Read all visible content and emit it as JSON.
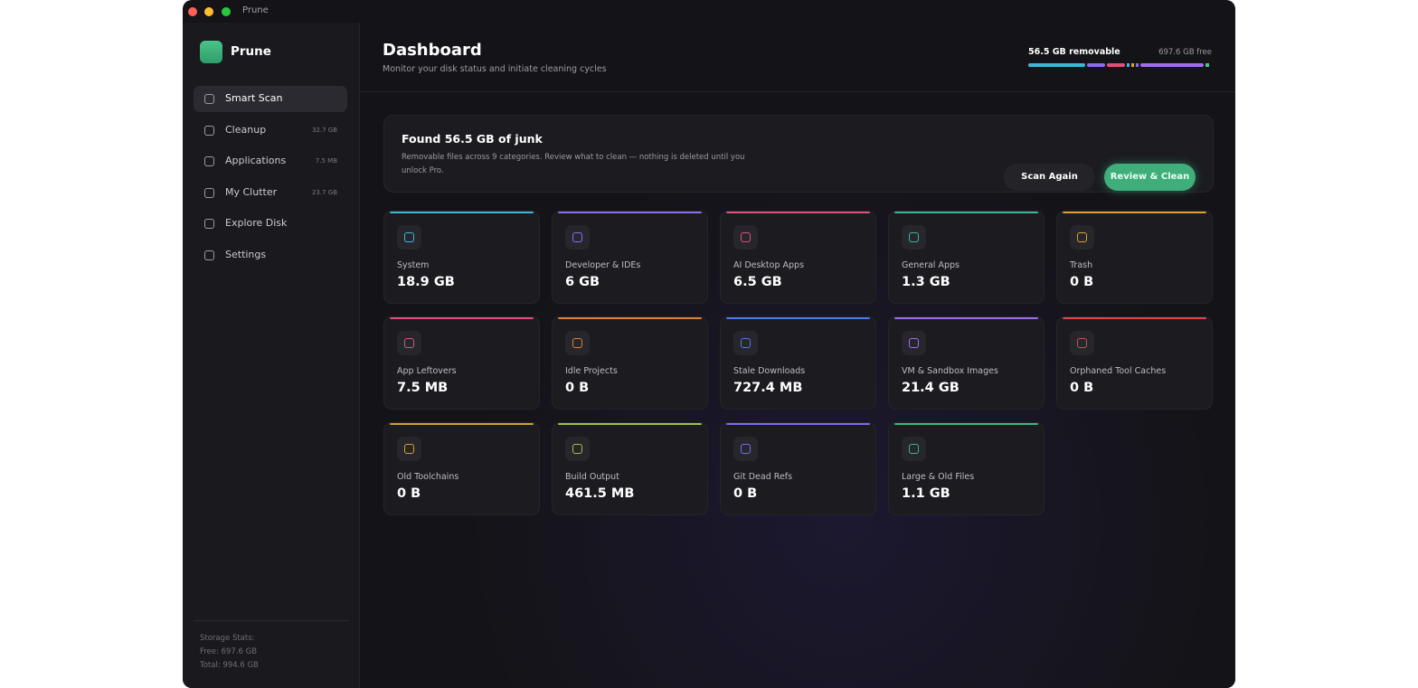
{
  "window": {
    "title": "Prune"
  },
  "sidebar": {
    "app_name": "Prune",
    "nav": [
      {
        "label": "Smart Scan"
      },
      {
        "label": "Cleanup",
        "size": "32.7 GB"
      },
      {
        "label": "Applications",
        "size": "7.5 MB"
      },
      {
        "label": "My Clutter",
        "size": "23.7 GB"
      },
      {
        "label": "Explore Disk"
      },
      {
        "label": "Settings"
      }
    ],
    "storage": {
      "title": "Storage Stats:",
      "free": "Free: 697.6 GB",
      "total": "Total: 994.6 GB"
    }
  },
  "header": {
    "title": "Dashboard",
    "subtitle": "Monitor your disk status and initiate cleaning cycles",
    "removable": "56.5 GB removable",
    "free": "697.6 GB free"
  },
  "banner": {
    "title": "Found 56.5 GB of junk",
    "description": "Removable files across 9 categories. Review what to clean — nothing is deleted until you unlock Pro.",
    "buttons": [
      "Scan Again",
      "Review & Clean"
    ]
  },
  "cards": [
    {
      "label": "System",
      "value": "18.9 GB"
    },
    {
      "label": "Developer & IDEs",
      "value": "6 GB"
    },
    {
      "label": "AI Desktop Apps",
      "value": "6.5 GB"
    },
    {
      "label": "General Apps",
      "value": "1.3 GB"
    },
    {
      "label": "Trash",
      "value": "0 B"
    },
    {
      "label": "App Leftovers",
      "value": "7.5 MB"
    },
    {
      "label": "Idle Projects",
      "value": "0 B"
    },
    {
      "label": "Stale Downloads",
      "value": "727.4 MB"
    },
    {
      "label": "VM & Sandbox Images",
      "value": "21.4 GB"
    },
    {
      "label": "Orphaned Tool Caches",
      "value": "0 B"
    },
    {
      "label": "Old Toolchains",
      "value": "0 B"
    },
    {
      "label": "Build Output",
      "value": "461.5 MB"
    },
    {
      "label": "Git Dead Refs",
      "value": "0 B"
    },
    {
      "label": "Large & Old Files",
      "value": "1.1 GB"
    }
  ]
}
